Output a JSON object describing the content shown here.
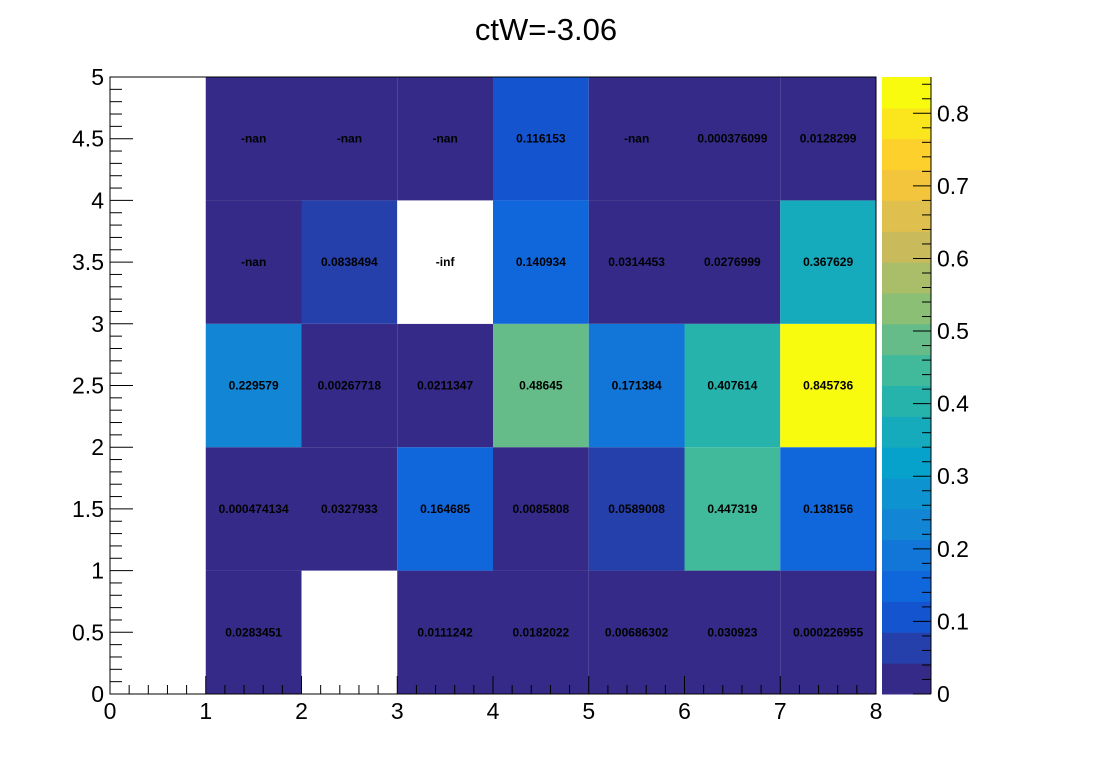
{
  "chart_data": {
    "type": "heatmap",
    "title": "ctW=-3.06",
    "xlim": [
      0,
      8
    ],
    "ylim": [
      0,
      5
    ],
    "x_edges": [
      0,
      1,
      2,
      3,
      4,
      5,
      6,
      7,
      8
    ],
    "y_edges": [
      0,
      1,
      2,
      3,
      4,
      5
    ],
    "x_tick_labels": [
      "0",
      "1",
      "2",
      "3",
      "4",
      "5",
      "6",
      "7",
      "8"
    ],
    "y_tick_labels": [
      "0",
      "0.5",
      "1",
      "1.5",
      "2",
      "2.5",
      "3",
      "3.5",
      "4",
      "4.5",
      "5"
    ],
    "z_range": [
      0,
      0.85
    ],
    "colorbar_tick_labels": [
      "0",
      "0.1",
      "0.2",
      "0.3",
      "0.4",
      "0.5",
      "0.6",
      "0.7",
      "0.8"
    ],
    "palette": "kBird",
    "empty_color": "#ffffff",
    "nan_color": "#352a87",
    "rows": [
      {
        "y_bin": 0,
        "labels": [
          "",
          "0.0283451",
          "",
          "0.0111242",
          "0.0182022",
          "0.00686302",
          "0.030923",
          "0.000226955"
        ]
      },
      {
        "y_bin": 1,
        "labels": [
          "",
          "0.000474134",
          "0.0327933",
          "0.164685",
          "0.0085808",
          "0.0589008",
          "0.447319",
          "0.138156"
        ]
      },
      {
        "y_bin": 2,
        "labels": [
          "",
          "0.229579",
          "0.00267718",
          "0.0211347",
          "0.48645",
          "0.171384",
          "0.407614",
          "0.845736"
        ]
      },
      {
        "y_bin": 3,
        "labels": [
          "",
          "-nan",
          "0.0838494",
          "-inf",
          "0.140934",
          "0.0314453",
          "0.0276999",
          "0.367629"
        ]
      },
      {
        "y_bin": 4,
        "labels": [
          "",
          "-nan",
          "-nan",
          "-nan",
          "0.116153",
          "-nan",
          "0.000376099",
          "0.0128299"
        ]
      }
    ]
  }
}
